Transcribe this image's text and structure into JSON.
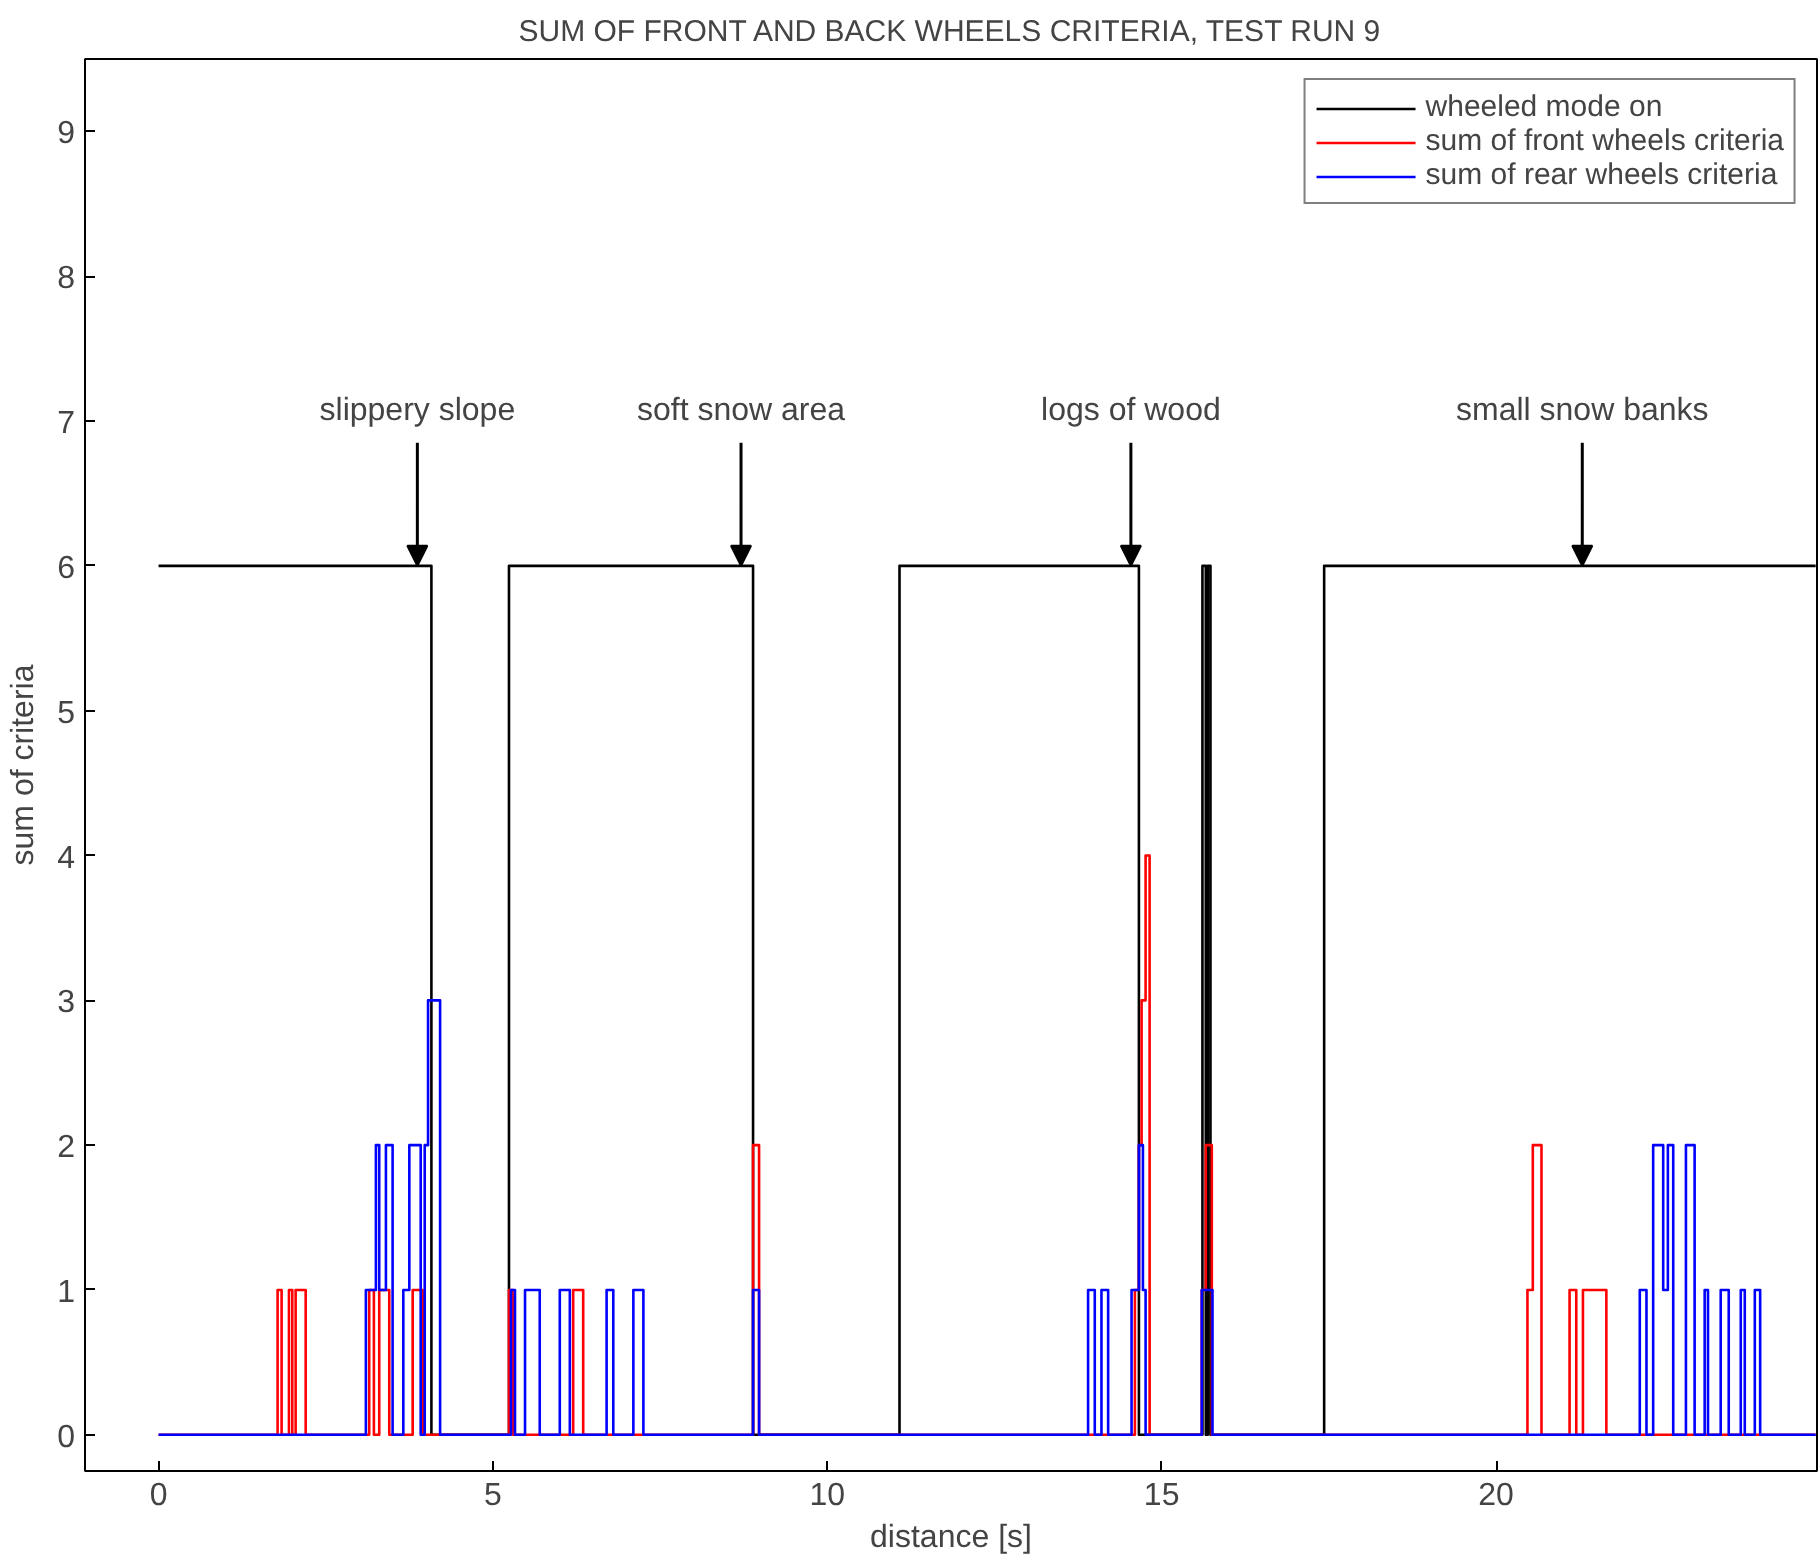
{
  "chart_data": {
    "type": "step",
    "title": "SUM OF FRONT AND BACK WHEELS CRITERIA, TEST RUN 9",
    "xlabel": "distance [s]",
    "ylabel": "sum of criteria",
    "xlim": [
      -1.1,
      24.8
    ],
    "ylim": [
      -0.25,
      9.5
    ],
    "xticks": [
      0,
      5,
      10,
      15,
      20
    ],
    "yticks": [
      0,
      1,
      2,
      3,
      4,
      5,
      6,
      7,
      8,
      9
    ],
    "grid": false,
    "legend": "top right",
    "line_style": "solid",
    "marker": "none",
    "series": [
      {
        "name": "wheeled mode on",
        "color": "#000000",
        "x": [
          0,
          4.08,
          5.24,
          8.89,
          11.08,
          14.66,
          15.61,
          15.66,
          15.69,
          15.73,
          17.43,
          24.78
        ],
        "values": [
          6,
          0,
          6,
          0,
          6,
          0,
          6,
          0,
          6,
          0,
          6,
          6
        ]
      },
      {
        "name": "sum of front wheels criteria",
        "color": "#ff0000",
        "x": [
          0,
          1.78,
          1.84,
          1.95,
          2.0,
          2.05,
          2.2,
          3.15,
          3.22,
          3.3,
          3.45,
          3.8,
          3.95,
          5.24,
          5.3,
          6.2,
          6.35,
          8.89,
          8.98,
          14.6,
          14.66,
          14.7,
          14.76,
          14.82,
          15.6,
          15.66,
          15.75,
          20.47,
          20.55,
          20.68,
          21.1,
          21.2,
          21.3,
          21.45,
          21.65,
          24.78
        ],
        "values": [
          0,
          1,
          0,
          1,
          0,
          1,
          0,
          1,
          0,
          1,
          0,
          1,
          0,
          1,
          0,
          1,
          0,
          2,
          0,
          1,
          2,
          3,
          4,
          0,
          1,
          2,
          0,
          1,
          2,
          0,
          1,
          0,
          1,
          1,
          0,
          0
        ]
      },
      {
        "name": "sum of rear wheels criteria",
        "color": "#0000ff",
        "x": [
          0,
          3.1,
          3.25,
          3.3,
          3.4,
          3.5,
          3.66,
          3.75,
          3.92,
          3.98,
          4.03,
          4.21,
          5.27,
          5.33,
          5.48,
          5.7,
          6.0,
          6.15,
          6.7,
          6.8,
          7.1,
          7.25,
          8.89,
          8.98,
          13.9,
          14.0,
          14.1,
          14.2,
          14.55,
          14.66,
          14.72,
          14.76,
          15.6,
          15.76,
          22.15,
          22.25,
          22.35,
          22.5,
          22.57,
          22.65,
          22.84,
          22.97,
          23.12,
          23.17,
          23.36,
          23.48,
          23.66,
          23.72,
          23.87,
          23.95,
          24.78
        ],
        "values": [
          0,
          1,
          2,
          1,
          2,
          0,
          1,
          2,
          0,
          2,
          3,
          0,
          1,
          0,
          1,
          0,
          1,
          0,
          1,
          0,
          1,
          0,
          1,
          0,
          1,
          0,
          1,
          0,
          1,
          2,
          1,
          0,
          1,
          0,
          1,
          0,
          2,
          1,
          2,
          0,
          2,
          0,
          1,
          0,
          1,
          0,
          1,
          0,
          1,
          0,
          0
        ]
      }
    ],
    "annotations": [
      {
        "text": "slippery slope",
        "x": 3.87,
        "y": 6
      },
      {
        "text": "soft snow area",
        "x": 8.71,
        "y": 6
      },
      {
        "text": "logs of wood",
        "x": 14.54,
        "y": 6
      },
      {
        "text": "small snow banks",
        "x": 21.29,
        "y": 6
      }
    ]
  }
}
